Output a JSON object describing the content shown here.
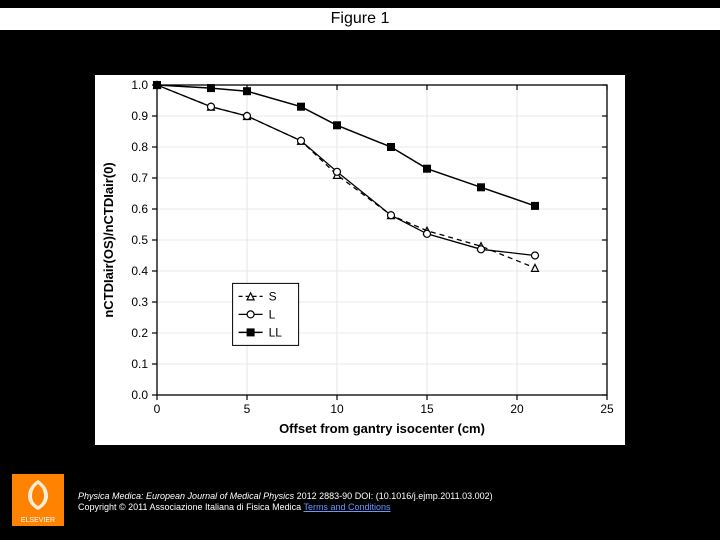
{
  "title": "Figure 1",
  "chart": {
    "type": "line",
    "background_color": "#ffffff",
    "grid_color": "#e0e0e0",
    "axis_color": "#000000",
    "xlabel": "Offset from gantry isocenter (cm)",
    "ylabel": "nCTDIair(OS)/nCTDIair(0)",
    "label_fontsize": 13,
    "tick_fontsize": 12,
    "xlim": [
      0,
      25
    ],
    "ylim": [
      0.0,
      1.0
    ],
    "xtick_step": 5,
    "ytick_step": 0.1,
    "grid": true,
    "legend": {
      "position": "inside-left",
      "x": 4.2,
      "y_top": 0.36,
      "border_color": "#000000",
      "background": "#ffffff"
    },
    "series": [
      {
        "name": "S",
        "label": "S",
        "color": "#000000",
        "marker": "triangle-open",
        "line_style": "dash",
        "line_width": 1.3,
        "marker_size": 7,
        "x": [
          0,
          3,
          5,
          8,
          10,
          13,
          15,
          18,
          21
        ],
        "y": [
          1.0,
          0.93,
          0.9,
          0.82,
          0.71,
          0.58,
          0.53,
          0.48,
          0.41
        ]
      },
      {
        "name": "L",
        "label": "L",
        "color": "#000000",
        "marker": "circle-open",
        "line_style": "solid",
        "line_width": 1.3,
        "marker_size": 7,
        "x": [
          0,
          3,
          5,
          8,
          10,
          13,
          15,
          18,
          21
        ],
        "y": [
          1.0,
          0.93,
          0.9,
          0.82,
          0.72,
          0.58,
          0.52,
          0.47,
          0.45
        ]
      },
      {
        "name": "LL",
        "label": "LL",
        "color": "#000000",
        "marker": "square-filled",
        "line_style": "solid",
        "line_width": 1.5,
        "marker_size": 7,
        "x": [
          0,
          3,
          5,
          8,
          10,
          13,
          15,
          18,
          21
        ],
        "y": [
          1.0,
          0.99,
          0.98,
          0.93,
          0.87,
          0.8,
          0.73,
          0.67,
          0.61
        ]
      }
    ]
  },
  "caption": {
    "journal": "Physica Medica: European Journal of Medical Physics",
    "year_pages": "2012 2883-90",
    "doi_label": "DOI: (10.1016/j.ejmp.2011.03.002)",
    "copyright": "Copyright © 2011 Associazione Italiana di Fisica Medica",
    "terms": "Terms and Conditions"
  },
  "publisher_logo": "ELSEVIER"
}
